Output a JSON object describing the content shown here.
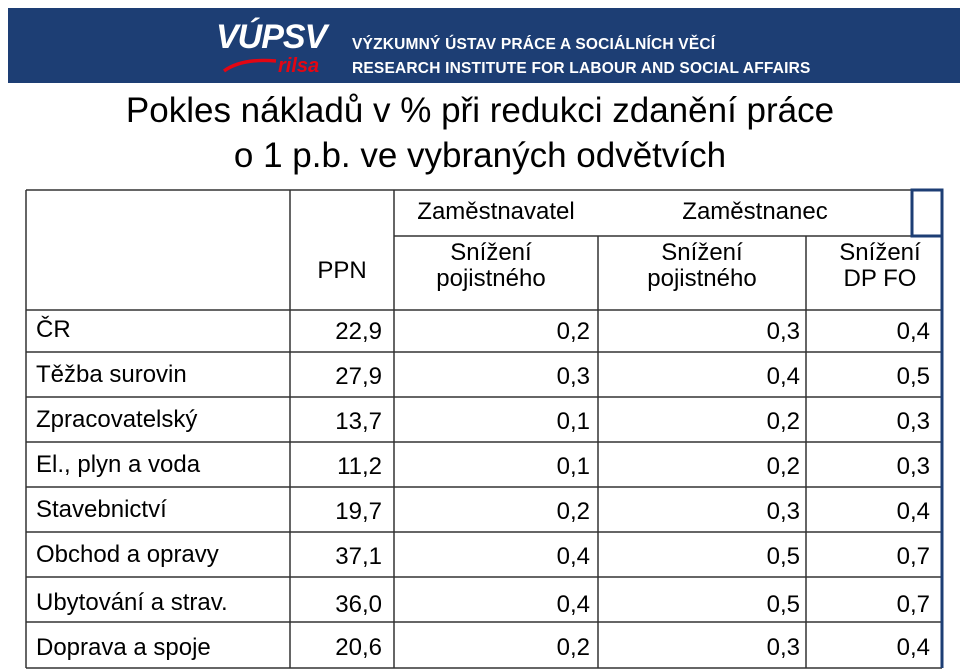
{
  "header": {
    "logo_main": "VÚPSV",
    "logo_sub": "rilsa",
    "institute_cz": "VÝZKUMNÝ ÚSTAV PRÁCE A SOCIÁLNÍCH VĚCÍ",
    "institute_en": "RESEARCH INSTITUTE FOR LABOUR AND SOCIAL AFFAIRS"
  },
  "title": {
    "line1": "Pokles nákladů v % při redukci zdanění práce",
    "line2": "o 1 p.b. ve vybraných odvětvích"
  },
  "table": {
    "group_headers": [
      "Zaměstnavatel",
      "Zaměstnanec"
    ],
    "col_ppn": "PPN",
    "sub_headers": [
      [
        "Snížení",
        "pojistného"
      ],
      [
        "Snížení",
        "pojistného"
      ],
      [
        "Snížení",
        "DP FO"
      ]
    ],
    "rows": [
      {
        "label": "ČR",
        "values": [
          "22,9",
          "0,2",
          "0,3",
          "0,4"
        ]
      },
      {
        "label": "Těžba surovin",
        "values": [
          "27,9",
          "0,3",
          "0,4",
          "0,5"
        ]
      },
      {
        "label": "Zpracovatelský",
        "values": [
          "13,7",
          "0,1",
          "0,2",
          "0,3"
        ]
      },
      {
        "label": "El., plyn a voda",
        "values": [
          "11,2",
          "0,1",
          "0,2",
          "0,3"
        ]
      },
      {
        "label": "Stavebnictví",
        "values": [
          "19,7",
          "0,2",
          "0,3",
          "0,4"
        ]
      },
      {
        "label": "Obchod a opravy",
        "values": [
          "37,1",
          "0,4",
          "0,5",
          "0,7"
        ]
      },
      {
        "label": "Ubytování a strav.",
        "values": [
          "36,0",
          "0,4",
          "0,5",
          "0,7"
        ]
      },
      {
        "label": "Doprava a spoje",
        "values": [
          "20,6",
          "0,2",
          "0,3",
          "0,4"
        ]
      }
    ]
  },
  "colors": {
    "banner": "#1d3e74",
    "logo_sub": "#e30613",
    "grid": "#333333",
    "accent_border": "#1d3e74"
  }
}
